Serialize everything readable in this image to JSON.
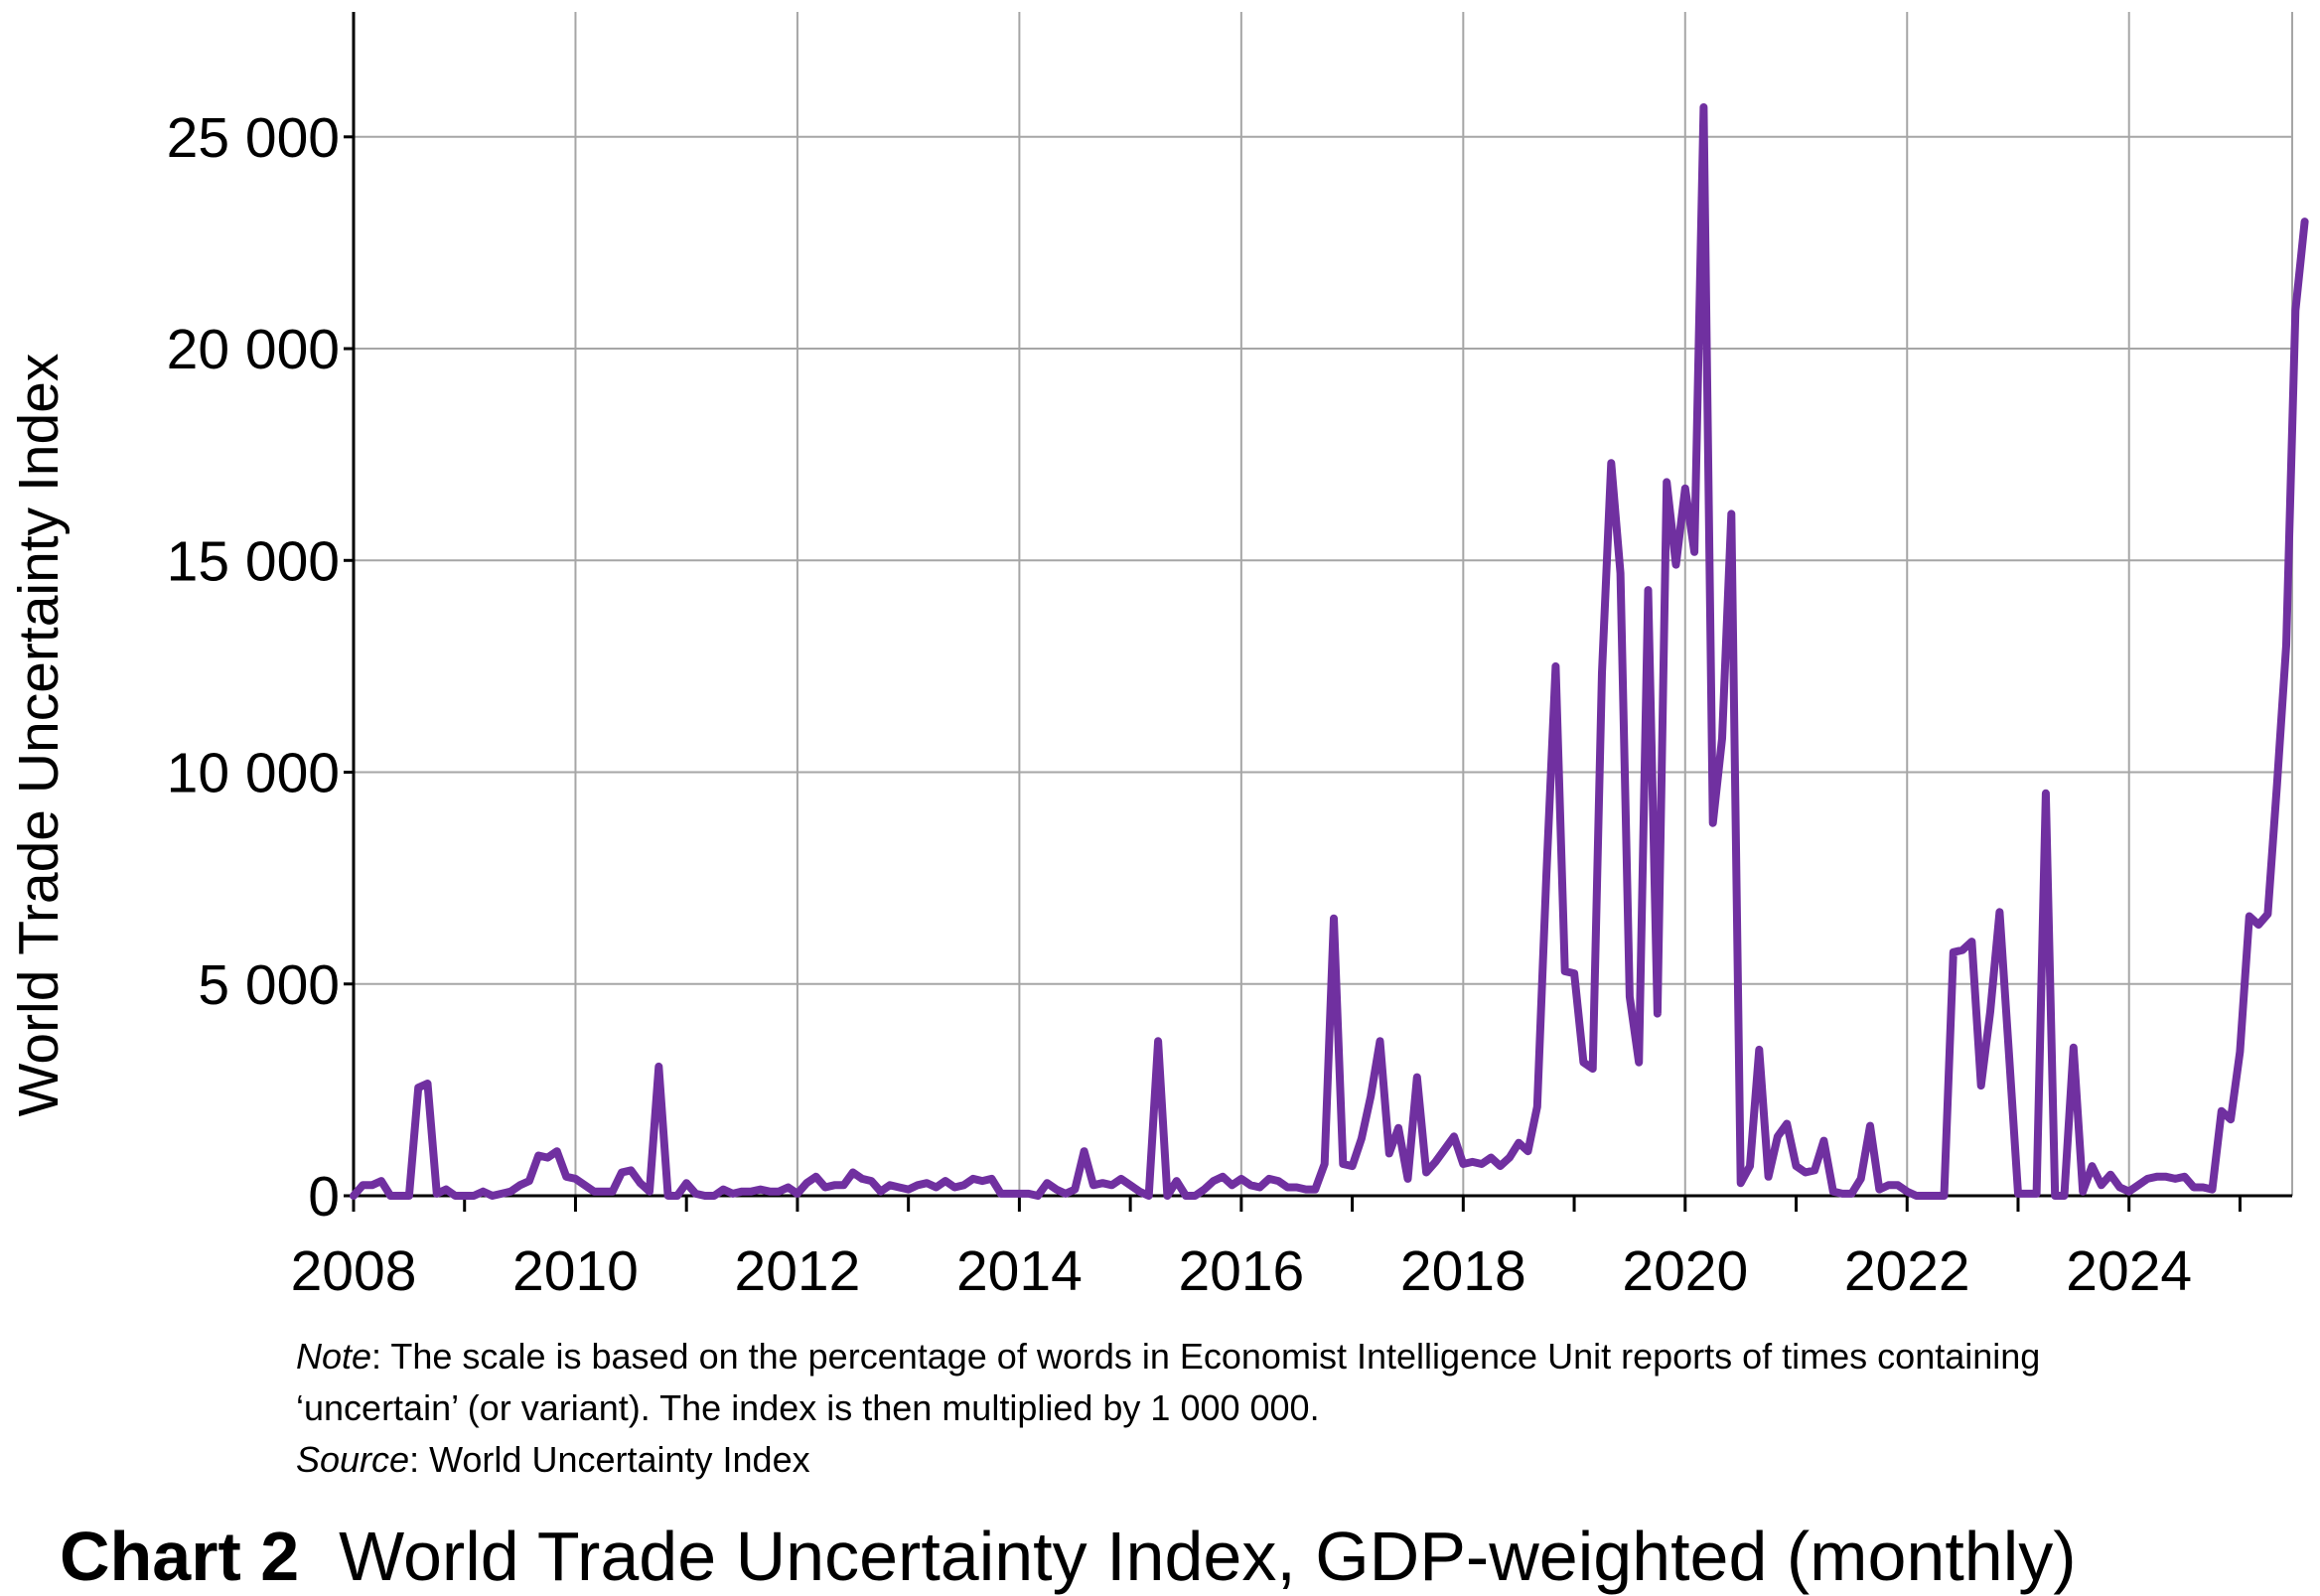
{
  "chart_data": {
    "type": "line",
    "title": "World Trade Uncertainty Index, GDP-weighted (monthly)",
    "caption_label": "Chart 2",
    "ylabel": "World Trade Uncertainty Index",
    "xlabel": "",
    "xlim": [
      "2008-01",
      "2025-06"
    ],
    "ylim": [
      0,
      27950
    ],
    "yticks": [
      0,
      5000,
      10000,
      15000,
      20000,
      25000
    ],
    "ytick_labels": [
      "0",
      "5 000",
      "10 000",
      "15 000",
      "20 000",
      "25 000"
    ],
    "xtick_labels": [
      "2008",
      "2010",
      "2012",
      "2014",
      "2016",
      "2018",
      "2020",
      "2022",
      "2024"
    ],
    "grid": true,
    "legend": "none",
    "series": [
      {
        "color": "#7030a0",
        "points": [
          [
            "2008-01",
            0
          ],
          [
            "2008-02",
            250
          ],
          [
            "2008-03",
            250
          ],
          [
            "2008-04",
            350
          ],
          [
            "2008-05",
            0
          ],
          [
            "2008-06",
            0
          ],
          [
            "2008-07",
            0
          ],
          [
            "2008-08",
            2550
          ],
          [
            "2008-09",
            2650
          ],
          [
            "2008-10",
            50
          ],
          [
            "2008-11",
            150
          ],
          [
            "2008-12",
            0
          ],
          [
            "2009-01",
            0
          ],
          [
            "2009-02",
            0
          ],
          [
            "2009-03",
            100
          ],
          [
            "2009-04",
            0
          ],
          [
            "2009-05",
            50
          ],
          [
            "2009-06",
            100
          ],
          [
            "2009-07",
            250
          ],
          [
            "2009-08",
            350
          ],
          [
            "2009-09",
            950
          ],
          [
            "2009-10",
            900
          ],
          [
            "2009-11",
            1050
          ],
          [
            "2009-12",
            450
          ],
          [
            "2010-01",
            400
          ],
          [
            "2010-02",
            250
          ],
          [
            "2010-03",
            100
          ],
          [
            "2010-04",
            100
          ],
          [
            "2010-05",
            100
          ],
          [
            "2010-06",
            550
          ],
          [
            "2010-07",
            600
          ],
          [
            "2010-08",
            300
          ],
          [
            "2010-09",
            100
          ],
          [
            "2010-10",
            3050
          ],
          [
            "2010-11",
            0
          ],
          [
            "2010-12",
            0
          ],
          [
            "2011-01",
            300
          ],
          [
            "2011-02",
            50
          ],
          [
            "2011-03",
            0
          ],
          [
            "2011-04",
            0
          ],
          [
            "2011-05",
            150
          ],
          [
            "2011-06",
            50
          ],
          [
            "2011-07",
            100
          ],
          [
            "2011-08",
            100
          ],
          [
            "2011-09",
            150
          ],
          [
            "2011-10",
            100
          ],
          [
            "2011-11",
            100
          ],
          [
            "2011-12",
            200
          ],
          [
            "2012-01",
            50
          ],
          [
            "2012-02",
            300
          ],
          [
            "2012-03",
            450
          ],
          [
            "2012-04",
            200
          ],
          [
            "2012-05",
            250
          ],
          [
            "2012-06",
            250
          ],
          [
            "2012-07",
            550
          ],
          [
            "2012-08",
            400
          ],
          [
            "2012-09",
            350
          ],
          [
            "2012-10",
            100
          ],
          [
            "2012-11",
            250
          ],
          [
            "2012-12",
            200
          ],
          [
            "2013-01",
            150
          ],
          [
            "2013-02",
            250
          ],
          [
            "2013-03",
            300
          ],
          [
            "2013-04",
            200
          ],
          [
            "2013-05",
            350
          ],
          [
            "2013-06",
            200
          ],
          [
            "2013-07",
            250
          ],
          [
            "2013-08",
            400
          ],
          [
            "2013-09",
            350
          ],
          [
            "2013-10",
            400
          ],
          [
            "2013-11",
            50
          ],
          [
            "2013-12",
            50
          ],
          [
            "2014-01",
            50
          ],
          [
            "2014-02",
            50
          ],
          [
            "2014-03",
            0
          ],
          [
            "2014-04",
            300
          ],
          [
            "2014-05",
            150
          ],
          [
            "2014-06",
            50
          ],
          [
            "2014-07",
            150
          ],
          [
            "2014-08",
            1050
          ],
          [
            "2014-09",
            250
          ],
          [
            "2014-10",
            300
          ],
          [
            "2014-11",
            250
          ],
          [
            "2014-12",
            400
          ],
          [
            "2015-01",
            250
          ],
          [
            "2015-02",
            100
          ],
          [
            "2015-03",
            0
          ],
          [
            "2015-04",
            3650
          ],
          [
            "2015-05",
            0
          ],
          [
            "2015-06",
            350
          ],
          [
            "2015-07",
            0
          ],
          [
            "2015-08",
            0
          ],
          [
            "2015-09",
            150
          ],
          [
            "2015-10",
            350
          ],
          [
            "2015-11",
            450
          ],
          [
            "2015-12",
            250
          ],
          [
            "2016-01",
            400
          ],
          [
            "2016-02",
            250
          ],
          [
            "2016-03",
            200
          ],
          [
            "2016-04",
            400
          ],
          [
            "2016-05",
            350
          ],
          [
            "2016-06",
            200
          ],
          [
            "2016-07",
            200
          ],
          [
            "2016-08",
            150
          ],
          [
            "2016-09",
            150
          ],
          [
            "2016-10",
            750
          ],
          [
            "2016-11",
            6550
          ],
          [
            "2016-12",
            750
          ],
          [
            "2017-01",
            700
          ],
          [
            "2017-02",
            1350
          ],
          [
            "2017-03",
            2350
          ],
          [
            "2017-04",
            3650
          ],
          [
            "2017-05",
            1000
          ],
          [
            "2017-06",
            1600
          ],
          [
            "2017-07",
            400
          ],
          [
            "2017-08",
            2800
          ],
          [
            "2017-09",
            550
          ],
          [
            "2017-10",
            800
          ],
          [
            "2017-11",
            1100
          ],
          [
            "2017-12",
            1400
          ],
          [
            "2018-01",
            750
          ],
          [
            "2018-02",
            800
          ],
          [
            "2018-03",
            750
          ],
          [
            "2018-04",
            900
          ],
          [
            "2018-05",
            700
          ],
          [
            "2018-06",
            900
          ],
          [
            "2018-07",
            1250
          ],
          [
            "2018-08",
            1050
          ],
          [
            "2018-09",
            2100
          ],
          [
            "2018-10",
            7600
          ],
          [
            "2018-11",
            12500
          ],
          [
            "2018-12",
            5300
          ],
          [
            "2019-01",
            5250
          ],
          [
            "2019-02",
            3150
          ],
          [
            "2019-03",
            3000
          ],
          [
            "2019-04",
            12350
          ],
          [
            "2019-05",
            17300
          ],
          [
            "2019-06",
            14700
          ],
          [
            "2019-07",
            4700
          ],
          [
            "2019-08",
            3150
          ],
          [
            "2019-09",
            14300
          ],
          [
            "2019-10",
            4300
          ],
          [
            "2019-11",
            16850
          ],
          [
            "2019-12",
            14900
          ],
          [
            "2020-01",
            16700
          ],
          [
            "2020-02",
            15200
          ],
          [
            "2020-03",
            25700
          ],
          [
            "2020-04",
            8800
          ],
          [
            "2020-05",
            10800
          ],
          [
            "2020-06",
            16100
          ],
          [
            "2020-07",
            300
          ],
          [
            "2020-08",
            700
          ],
          [
            "2020-09",
            3450
          ],
          [
            "2020-10",
            450
          ],
          [
            "2020-11",
            1400
          ],
          [
            "2020-12",
            1700
          ],
          [
            "2021-01",
            700
          ],
          [
            "2021-02",
            550
          ],
          [
            "2021-03",
            600
          ],
          [
            "2021-04",
            1300
          ],
          [
            "2021-05",
            100
          ],
          [
            "2021-06",
            50
          ],
          [
            "2021-07",
            50
          ],
          [
            "2021-08",
            400
          ],
          [
            "2021-09",
            1650
          ],
          [
            "2021-10",
            150
          ],
          [
            "2021-11",
            250
          ],
          [
            "2021-12",
            250
          ],
          [
            "2022-01",
            100
          ],
          [
            "2022-02",
            0
          ],
          [
            "2022-03",
            0
          ],
          [
            "2022-04",
            0
          ],
          [
            "2022-05",
            0
          ],
          [
            "2022-06",
            5750
          ],
          [
            "2022-07",
            5800
          ],
          [
            "2022-08",
            6000
          ],
          [
            "2022-09",
            2600
          ],
          [
            "2022-10",
            4350
          ],
          [
            "2022-11",
            6700
          ],
          [
            "2022-12",
            3400
          ],
          [
            "2023-01",
            50
          ],
          [
            "2023-02",
            50
          ],
          [
            "2023-03",
            50
          ],
          [
            "2023-04",
            9500
          ],
          [
            "2023-05",
            0
          ],
          [
            "2023-06",
            0
          ],
          [
            "2023-07",
            3500
          ],
          [
            "2023-08",
            100
          ],
          [
            "2023-09",
            700
          ],
          [
            "2023-10",
            250
          ],
          [
            "2023-11",
            500
          ],
          [
            "2023-12",
            200
          ],
          [
            "2024-01",
            100
          ],
          [
            "2024-02",
            250
          ],
          [
            "2024-03",
            400
          ],
          [
            "2024-04",
            450
          ],
          [
            "2024-05",
            450
          ],
          [
            "2024-06",
            400
          ],
          [
            "2024-07",
            450
          ],
          [
            "2024-08",
            200
          ],
          [
            "2024-09",
            200
          ],
          [
            "2024-10",
            150
          ],
          [
            "2024-11",
            2000
          ],
          [
            "2024-12",
            1800
          ],
          [
            "2025-01",
            3400
          ],
          [
            "2025-02",
            6600
          ],
          [
            "2025-03",
            6400
          ],
          [
            "2025-04",
            6650
          ],
          [
            "2025-05",
            9700
          ],
          [
            "2025-06",
            13000
          ],
          [
            "2025-07",
            20900
          ],
          [
            "2025-08",
            23000
          ]
        ]
      }
    ]
  },
  "notes": {
    "note_label": "Note",
    "note_text": ": The scale is based on the percentage of words in Economist Intelligence Unit reports of times containing",
    "note_text_2": "‘uncertain’ (or variant). The index is then multiplied by 1 000 000.",
    "source_label": "Source",
    "source_text": ": World Uncertainty Index"
  }
}
